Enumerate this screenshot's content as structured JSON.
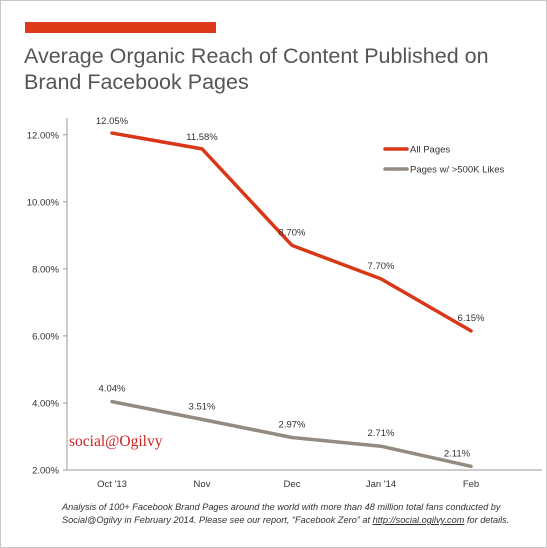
{
  "header": {
    "title_line1": "Average Organic Reach of Content Published on",
    "title_line2": "Brand Facebook Pages",
    "accent_color": "#dd3a1a"
  },
  "brand": {
    "text": "social@Ogilvy",
    "color": "#cc2222"
  },
  "footnote": {
    "text_before_link": "Analysis of 100+ Facebook Brand Pages around the world with more than 48 million total fans conducted by Social@Ogilvy in February 2014. Please see our report, “Facebook Zero” at ",
    "link": "http://social.ogilvy.com",
    "text_after_link": " for details."
  },
  "chart_data": {
    "type": "line",
    "categories": [
      "Oct '13",
      "Nov",
      "Dec",
      "Jan '14",
      "Feb"
    ],
    "ylim": [
      2,
      12.5
    ],
    "yticks": [
      2,
      4,
      6,
      8,
      10,
      12
    ],
    "ytick_labels": [
      "2.00%",
      "4.00%",
      "6.00%",
      "8.00%",
      "10.00%",
      "12.00%"
    ],
    "grid": false,
    "legend_position": "top-right",
    "series": [
      {
        "name": "All Pages",
        "color": "#d83818",
        "values": [
          12.05,
          11.58,
          8.7,
          7.7,
          6.15
        ],
        "labels": [
          "12.05%",
          "11.58%",
          "8.70%",
          "7.70%",
          "6.15%"
        ]
      },
      {
        "name": "Pages w/ >500K Likes",
        "color": "#938a80",
        "values": [
          4.04,
          3.51,
          2.97,
          2.71,
          2.11
        ],
        "labels": [
          "4.04%",
          "3.51%",
          "2.97%",
          "2.71%",
          "2.11%"
        ]
      }
    ]
  }
}
